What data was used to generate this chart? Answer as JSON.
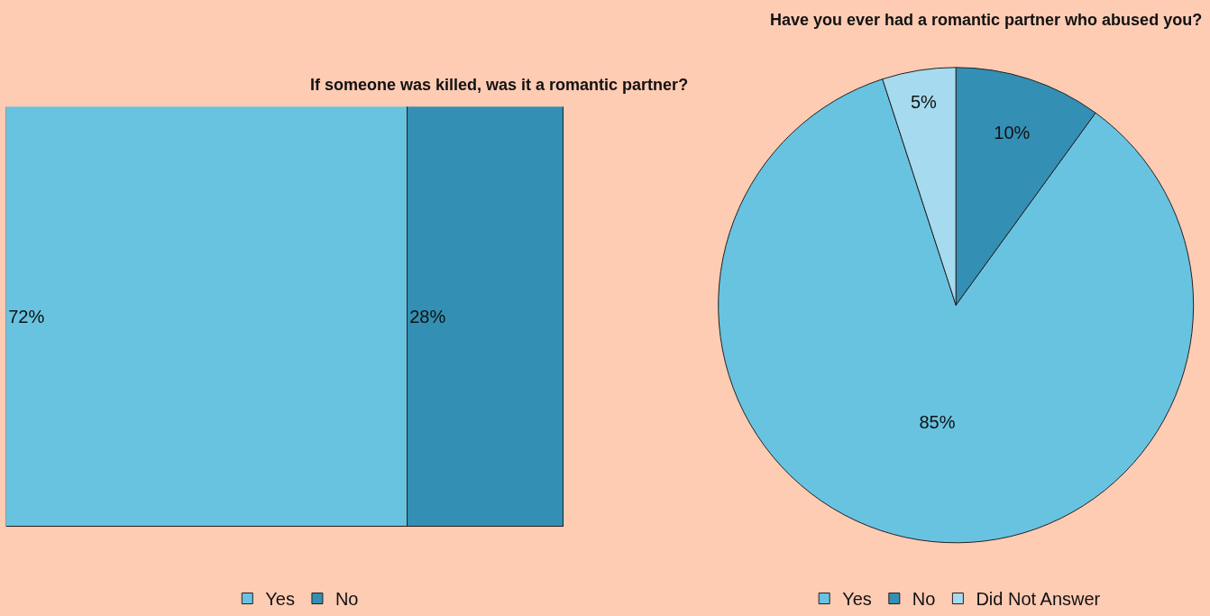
{
  "chart_data": [
    {
      "type": "bar",
      "orientation": "horizontal",
      "stacked": true,
      "title": "If someone was killed, was it a romantic partner?",
      "categories": [
        null
      ],
      "legend": "bottom",
      "tick_labels": false,
      "series": [
        {
          "name": "Yes",
          "color": "#68c3e1",
          "values": [
            72
          ],
          "value_labels": [
            "72%"
          ]
        },
        {
          "name": "No",
          "color": "#348fb4",
          "values": [
            28
          ],
          "value_labels": [
            "28%"
          ]
        }
      ]
    },
    {
      "type": "pie",
      "title": "Have you ever had a romantic partner who abused you?",
      "categories": [
        "Yes",
        "No",
        "Did Not Answer"
      ],
      "values": [
        85,
        10,
        5
      ],
      "value_labels": [
        "85%",
        "10%",
        "5%"
      ],
      "colors": [
        "#68c3e1",
        "#348fb4",
        "#a5daef"
      ],
      "legend": "bottom"
    }
  ]
}
